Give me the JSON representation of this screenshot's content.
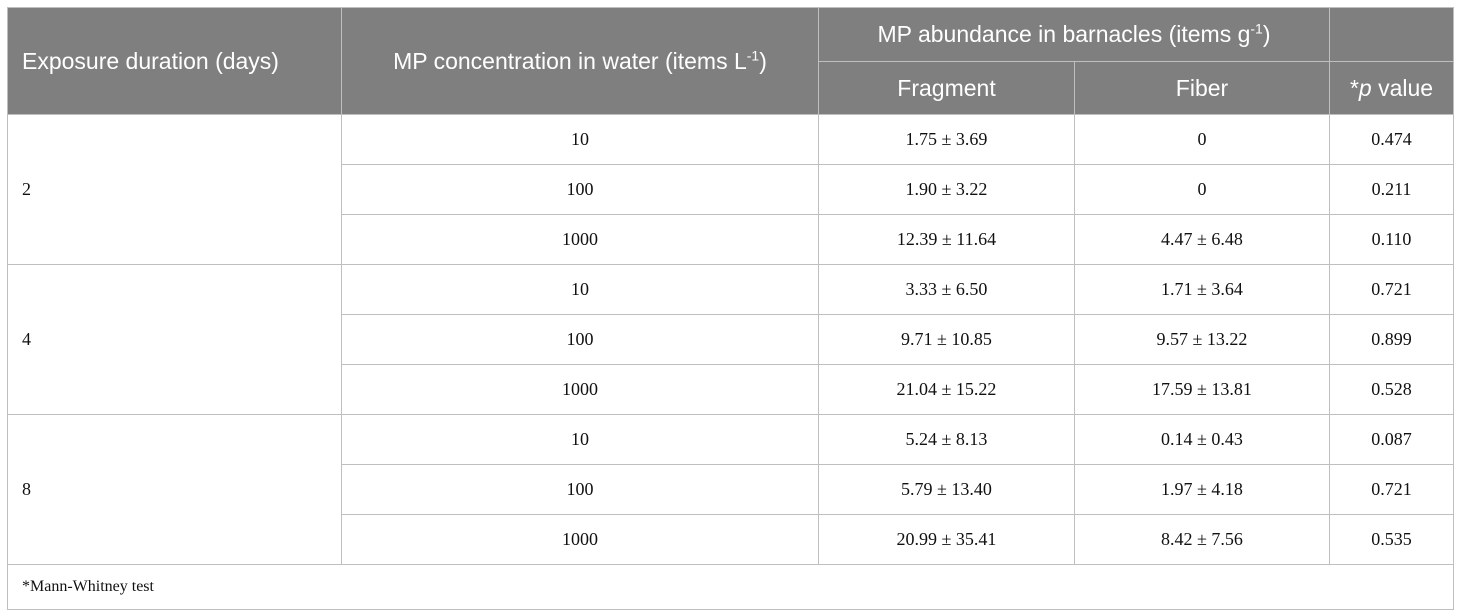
{
  "header": {
    "duration": "Exposure duration (days)",
    "concentration_prefix": "MP concentration in water (items L",
    "concentration_sup": "-1",
    "concentration_suffix": ")",
    "abundance_prefix": "MP abundance in barnacles (items g",
    "abundance_sup": "-1",
    "abundance_suffix": ")",
    "fragment": "Fragment",
    "fiber": "Fiber",
    "p_star": "*",
    "p_italic": "p",
    "p_rest": " value"
  },
  "groups": [
    {
      "duration": "2",
      "rows": [
        {
          "concentration": "10",
          "fragment": "1.75 ± 3.69",
          "fiber": "0",
          "p": "0.474"
        },
        {
          "concentration": "100",
          "fragment": "1.90 ± 3.22",
          "fiber": "0",
          "p": "0.211"
        },
        {
          "concentration": "1000",
          "fragment": "12.39 ± 11.64",
          "fiber": "4.47 ± 6.48",
          "p": "0.110"
        }
      ]
    },
    {
      "duration": "4",
      "rows": [
        {
          "concentration": "10",
          "fragment": "3.33 ± 6.50",
          "fiber": "1.71 ± 3.64",
          "p": "0.721"
        },
        {
          "concentration": "100",
          "fragment": "9.71 ± 10.85",
          "fiber": "9.57 ± 13.22",
          "p": "0.899"
        },
        {
          "concentration": "1000",
          "fragment": "21.04 ± 15.22",
          "fiber": "17.59 ± 13.81",
          "p": "0.528"
        }
      ]
    },
    {
      "duration": "8",
      "rows": [
        {
          "concentration": "10",
          "fragment": "5.24 ± 8.13",
          "fiber": "0.14 ± 0.43",
          "p": "0.087"
        },
        {
          "concentration": "100",
          "fragment": "5.79 ± 13.40",
          "fiber": "1.97 ± 4.18",
          "p": "0.721"
        },
        {
          "concentration": "1000",
          "fragment": "20.99 ± 35.41",
          "fiber": "8.42 ± 7.56",
          "p": "0.535"
        }
      ]
    }
  ],
  "footnote": "*Mann-Whitney test"
}
